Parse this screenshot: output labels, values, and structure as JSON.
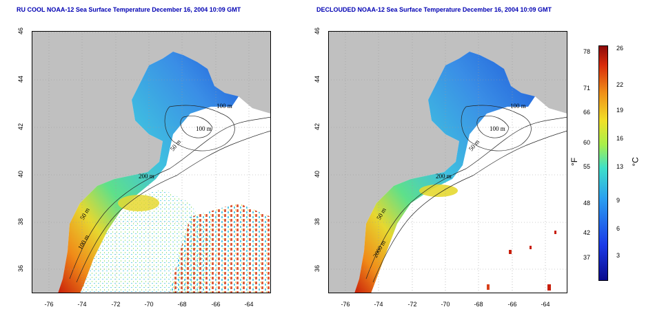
{
  "panels": [
    {
      "title": "RU COOL NOAA-12 Sea Surface Temperature December 16, 2004 10:09 GMT"
    },
    {
      "title": "DECLOUDED NOAA-12 Sea Surface Temperature December 16, 2004 10:09 GMT"
    }
  ],
  "axes": {
    "lat_ticks": [
      "46",
      "44",
      "42",
      "40",
      "38",
      "36"
    ],
    "lon_ticks": [
      "-76",
      "-74",
      "-72",
      "-70",
      "-68",
      "-66",
      "-64"
    ]
  },
  "contours": {
    "left": [
      "100 m",
      "100 m",
      "50 m",
      "200 m",
      "50 m",
      "100 m"
    ],
    "right": [
      "100 m",
      "100 m",
      "50 m",
      "200 m",
      "50 m",
      "2000 m"
    ]
  },
  "colorbar": {
    "fahrenheit_ticks": [
      "78",
      "71",
      "66",
      "60",
      "55",
      "48",
      "42",
      "37"
    ],
    "celsius_ticks": [
      "26",
      "22",
      "19",
      "16",
      "13",
      "9",
      "6",
      "3"
    ],
    "unit_f": "°F",
    "unit_c": "°C"
  },
  "colors": {
    "land": "#c0c0c0",
    "title": "#0000b3",
    "ocean_cold": "#1e5bd8",
    "ocean_mid": "#3fc0e0",
    "ocean_warm": "#e6d830",
    "ocean_hot": "#c81e0a"
  }
}
